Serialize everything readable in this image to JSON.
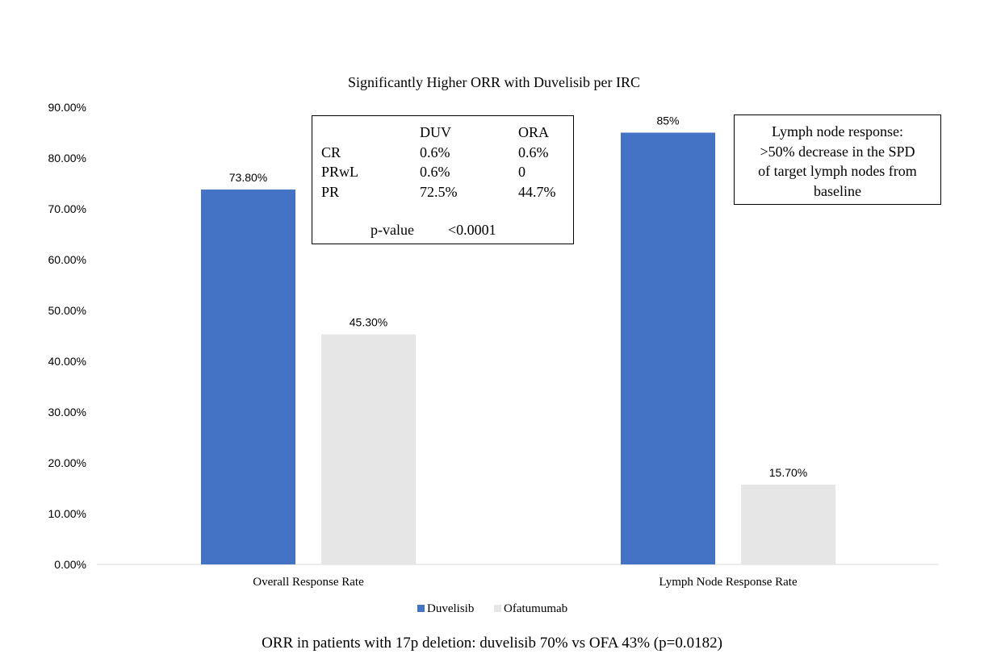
{
  "chart_data": {
    "type": "bar",
    "title": "Significantly Higher ORR with Duvelisib per IRC",
    "categories": [
      "Overall Response Rate",
      "Lymph Node Response Rate"
    ],
    "series": [
      {
        "name": "Duvelisib",
        "color": "#4472C4",
        "values": [
          73.8,
          85
        ],
        "labels": [
          "73.80%",
          "85%"
        ]
      },
      {
        "name": "Ofatumumab",
        "color": "#E7E6E6",
        "values": [
          45.3,
          15.7
        ],
        "labels": [
          "45.30%",
          "15.70%"
        ]
      }
    ],
    "yticks": [
      0,
      10,
      20,
      30,
      40,
      50,
      60,
      70,
      80,
      90
    ],
    "ytick_labels": [
      "0.00%",
      "10.00%",
      "20.00%",
      "30.00%",
      "40.00%",
      "50.00%",
      "60.00%",
      "70.00%",
      "80.00%",
      "90.00%"
    ],
    "ylim": [
      0,
      90
    ],
    "xlabel": "",
    "ylabel": "",
    "grid": false,
    "legend": "bottom"
  },
  "response_table": {
    "headers": [
      "",
      "DUV",
      "ORA"
    ],
    "rows": [
      [
        "CR",
        "0.6%",
        "0.6%"
      ],
      [
        "PRwL",
        "0.6%",
        "0"
      ],
      [
        "PR",
        "72.5%",
        "44.7%"
      ]
    ],
    "pvalue_label": "p-value",
    "pvalue": "<0.0001"
  },
  "lymph_note": {
    "lines": [
      "Lymph node response:",
      ">50% decrease in the SPD",
      "of target lymph nodes from",
      "baseline"
    ]
  },
  "footnote": "ORR in patients with 17p deletion: duvelisib 70% vs OFA 43% (p=0.0182)"
}
